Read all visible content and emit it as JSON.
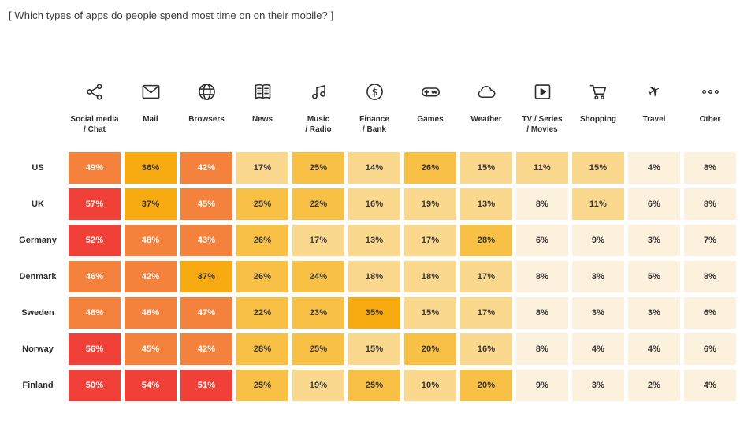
{
  "title": "[ Which types of apps do people spend most time on on their mobile? ]",
  "chart_data": {
    "type": "heatmap",
    "unit": "%",
    "columns": [
      {
        "label": "Social media\n/ Chat",
        "icon": "share-icon"
      },
      {
        "label": "Mail",
        "icon": "mail-icon"
      },
      {
        "label": "Browsers",
        "icon": "globe-icon"
      },
      {
        "label": "News",
        "icon": "news-icon"
      },
      {
        "label": "Music\n/ Radio",
        "icon": "music-note-icon"
      },
      {
        "label": "Finance\n/ Bank",
        "icon": "dollar-circle-icon"
      },
      {
        "label": "Games",
        "icon": "gamepad-icon"
      },
      {
        "label": "Weather",
        "icon": "cloud-icon"
      },
      {
        "label": "TV / Series\n/ Movies",
        "icon": "play-icon"
      },
      {
        "label": "Shopping",
        "icon": "cart-icon"
      },
      {
        "label": "Travel",
        "icon": "plane-icon"
      },
      {
        "label": "Other",
        "icon": "ellipsis-icon"
      }
    ],
    "rows": [
      "US",
      "UK",
      "Germany",
      "Denmark",
      "Sweden",
      "Norway",
      "Finland"
    ],
    "values": [
      [
        49,
        36,
        42,
        17,
        25,
        14,
        26,
        15,
        11,
        15,
        4,
        8
      ],
      [
        57,
        37,
        45,
        25,
        22,
        16,
        19,
        13,
        8,
        11,
        6,
        8
      ],
      [
        52,
        48,
        43,
        26,
        17,
        13,
        17,
        28,
        6,
        9,
        3,
        7
      ],
      [
        46,
        42,
        37,
        26,
        24,
        18,
        18,
        17,
        8,
        3,
        5,
        8
      ],
      [
        46,
        48,
        47,
        22,
        23,
        35,
        15,
        17,
        8,
        3,
        3,
        6
      ],
      [
        56,
        45,
        42,
        28,
        25,
        15,
        20,
        16,
        8,
        4,
        4,
        6
      ],
      [
        50,
        54,
        51,
        25,
        19,
        25,
        10,
        20,
        9,
        3,
        2,
        4
      ]
    ],
    "color_scale": [
      {
        "min": 0,
        "max": 9,
        "bg": "#FCF1DD",
        "text": "#3A3836"
      },
      {
        "min": 10,
        "max": 19,
        "bg": "#FAD88D",
        "text": "#3A3836"
      },
      {
        "min": 20,
        "max": 29,
        "bg": "#F8C045",
        "text": "#3A3836"
      },
      {
        "min": 30,
        "max": 39,
        "bg": "#F8AB10",
        "text": "#3A3836"
      },
      {
        "min": 40,
        "max": 49,
        "bg": "#F5823C",
        "text": "#FFFFFF"
      },
      {
        "min": 50,
        "max": 100,
        "bg": "#F14038",
        "text": "#FFFFFF"
      }
    ],
    "icon_color": "#2E2D2C"
  }
}
